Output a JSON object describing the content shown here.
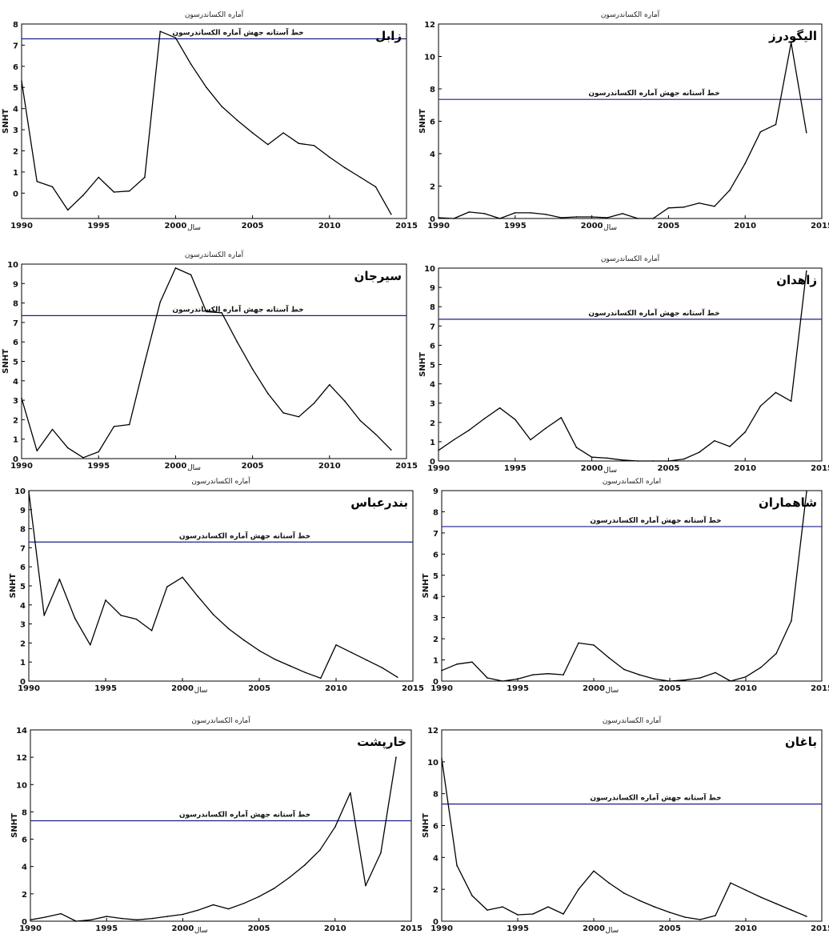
{
  "chart_data": [
    {
      "type": "line",
      "title": "آماره الکساندرسون",
      "station": "زابل",
      "xlabel": "سال",
      "ylabel": "SNHT",
      "xlim": [
        1990,
        2015
      ],
      "ylim": [
        -1.2,
        8
      ],
      "xticks": [
        1990,
        1995,
        2000,
        2005,
        2010,
        2015
      ],
      "yticks": [
        0,
        1,
        2,
        3,
        4,
        5,
        6,
        7,
        8
      ],
      "threshold": 7.3,
      "threshold_label": "خط آستانه جهش آماره الکساندرسون",
      "x": [
        1990,
        1991,
        1992,
        1993,
        1994,
        1995,
        1996,
        1997,
        1998,
        1999,
        2000,
        2001,
        2002,
        2003,
        2004,
        2005,
        2006,
        2007,
        2008,
        2009,
        2010,
        2011,
        2012,
        2013,
        2014
      ],
      "y": [
        5.3,
        0.55,
        0.3,
        -0.8,
        -0.1,
        0.75,
        0.05,
        0.1,
        0.75,
        7.65,
        7.35,
        6.1,
        5.0,
        4.1,
        3.45,
        2.85,
        2.3,
        2.85,
        2.35,
        2.25,
        1.7,
        1.2,
        0.75,
        0.3,
        -1.0
      ]
    },
    {
      "type": "line",
      "title": "آماره الکساندرسون",
      "station": "الیگودرز",
      "xlabel": "سال",
      "ylabel": "SNHT",
      "xlim": [
        1990,
        2015
      ],
      "ylim": [
        0,
        12
      ],
      "xticks": [
        1990,
        1995,
        2000,
        2005,
        2010,
        2015
      ],
      "yticks": [
        0,
        2,
        4,
        6,
        8,
        10,
        12
      ],
      "threshold": 7.35,
      "threshold_label": "خط آستانه جهش آماره الکساندرسون",
      "x": [
        1990,
        1991,
        1992,
        1993,
        1994,
        1995,
        1996,
        1997,
        1998,
        1999,
        2000,
        2001,
        2002,
        2003,
        2004,
        2005,
        2006,
        2007,
        2008,
        2009,
        2010,
        2011,
        2012,
        2013,
        2014
      ],
      "y": [
        0.05,
        0.0,
        0.4,
        0.3,
        0.0,
        0.35,
        0.35,
        0.25,
        0.05,
        0.1,
        0.1,
        0.05,
        0.3,
        0.0,
        0.0,
        0.65,
        0.7,
        0.95,
        0.75,
        1.75,
        3.4,
        5.35,
        5.8,
        10.85,
        5.3
      ]
    },
    {
      "type": "line",
      "title": "آماره الکساندرسون",
      "station": "سیرجان",
      "xlabel": "سال",
      "ylabel": "SNHT",
      "xlim": [
        1990,
        2015
      ],
      "ylim": [
        0,
        10
      ],
      "xticks": [
        1990,
        1995,
        2000,
        2005,
        2010,
        2015
      ],
      "yticks": [
        0,
        1,
        2,
        3,
        4,
        5,
        6,
        7,
        8,
        9,
        10
      ],
      "threshold": 7.35,
      "threshold_label": "خط آستانه جهش آماره الکساندرسون",
      "x": [
        1990,
        1991,
        1992,
        1993,
        1994,
        1995,
        1996,
        1997,
        1998,
        1999,
        2000,
        2001,
        2002,
        2003,
        2004,
        2005,
        2006,
        2007,
        2008,
        2009,
        2010,
        2011,
        2012,
        2013,
        2014
      ],
      "y": [
        3.1,
        0.4,
        1.5,
        0.55,
        0.05,
        0.35,
        1.65,
        1.75,
        4.95,
        8.05,
        9.8,
        9.45,
        7.55,
        7.5,
        6.0,
        4.6,
        3.35,
        2.35,
        2.15,
        2.85,
        3.8,
        2.95,
        1.95,
        1.25,
        0.45
      ]
    },
    {
      "type": "line",
      "title": "آماره الکساندرسون",
      "station": "زاهدان",
      "xlabel": "سال",
      "ylabel": "SNHT",
      "xlim": [
        1990,
        2015
      ],
      "ylim": [
        0,
        10
      ],
      "xticks": [
        1990,
        1995,
        2000,
        2005,
        2010,
        2015
      ],
      "yticks": [
        0,
        1,
        2,
        3,
        4,
        5,
        6,
        7,
        8,
        9,
        10
      ],
      "threshold": 7.35,
      "threshold_label": "خط آستانه جهش آماره الکساندرسون",
      "x": [
        1990,
        1991,
        1992,
        1993,
        1994,
        1995,
        1996,
        1997,
        1998,
        1999,
        2000,
        2001,
        2002,
        2003,
        2004,
        2005,
        2006,
        2007,
        2008,
        2009,
        2010,
        2011,
        2012,
        2013,
        2014
      ],
      "y": [
        0.55,
        1.1,
        1.6,
        2.2,
        2.75,
        2.15,
        1.1,
        1.7,
        2.25,
        0.7,
        0.2,
        0.15,
        0.05,
        0.0,
        0.0,
        0.0,
        0.1,
        0.45,
        1.05,
        0.75,
        1.5,
        2.85,
        3.55,
        3.1,
        9.85
      ]
    },
    {
      "type": "line",
      "title": "آماره الکساندرسون",
      "station": "بندرعباس",
      "xlabel": "سال",
      "ylabel": "SNHT",
      "xlim": [
        1990,
        2015
      ],
      "ylim": [
        0,
        10
      ],
      "xticks": [
        1990,
        1995,
        2000,
        2005,
        2010,
        2015
      ],
      "yticks": [
        0,
        1,
        2,
        3,
        4,
        5,
        6,
        7,
        8,
        9,
        10
      ],
      "threshold": 7.3,
      "threshold_label": "خط آستانه جهش آماره الکساندرسون",
      "x": [
        1990,
        1991,
        1992,
        1993,
        1994,
        1995,
        1996,
        1997,
        1998,
        1999,
        2000,
        2001,
        2002,
        2003,
        2004,
        2005,
        2006,
        2007,
        2008,
        2009,
        2010,
        2011,
        2012,
        2013,
        2014
      ],
      "y": [
        9.95,
        3.45,
        5.35,
        3.3,
        1.9,
        4.25,
        3.45,
        3.25,
        2.65,
        4.95,
        5.45,
        4.45,
        3.5,
        2.75,
        2.15,
        1.6,
        1.15,
        0.8,
        0.45,
        0.15,
        1.9,
        1.5,
        1.1,
        0.7,
        0.2
      ]
    },
    {
      "type": "line",
      "title": "اماره الکساندرسون",
      "station": "شاهماران",
      "xlabel": "سال",
      "ylabel": "SNHT",
      "xlim": [
        1990,
        2015
      ],
      "ylim": [
        0,
        9
      ],
      "xticks": [
        1990,
        1995,
        2000,
        2005,
        2010,
        2015
      ],
      "yticks": [
        0,
        1,
        2,
        3,
        4,
        5,
        6,
        7,
        8,
        9
      ],
      "threshold": 7.3,
      "threshold_label": "خط آستانه جهش آماره الکساندرسون",
      "x": [
        1990,
        1991,
        1992,
        1993,
        1994,
        1995,
        1996,
        1997,
        1998,
        1999,
        2000,
        2001,
        2002,
        2003,
        2004,
        2005,
        2006,
        2007,
        2008,
        2009,
        2010,
        2011,
        2012,
        2013,
        2014
      ],
      "y": [
        0.5,
        0.8,
        0.9,
        0.15,
        0.0,
        0.1,
        0.3,
        0.35,
        0.3,
        1.8,
        1.7,
        1.1,
        0.55,
        0.3,
        0.1,
        0.0,
        0.05,
        0.15,
        0.4,
        0.0,
        0.2,
        0.65,
        1.3,
        2.85,
        8.95
      ]
    },
    {
      "type": "line",
      "title": "آماره الکساندرسون",
      "station": "خارپشت",
      "xlabel": "سال",
      "ylabel": "SNHT",
      "xlim": [
        1990,
        2015
      ],
      "ylim": [
        0,
        14
      ],
      "xticks": [
        1990,
        1995,
        2000,
        2005,
        2010,
        2015
      ],
      "yticks": [
        0,
        2,
        4,
        6,
        8,
        10,
        12,
        14
      ],
      "threshold": 7.35,
      "threshold_label": "خط آستانه جهش آماره الکساندرسون",
      "x": [
        1990,
        1991,
        1992,
        1993,
        1994,
        1995,
        1996,
        1997,
        1998,
        1999,
        2000,
        2001,
        2002,
        2003,
        2004,
        2005,
        2006,
        2007,
        2008,
        2009,
        2010,
        2011,
        2012,
        2013,
        2014
      ],
      "y": [
        0.1,
        0.3,
        0.55,
        0.0,
        0.1,
        0.35,
        0.2,
        0.1,
        0.2,
        0.35,
        0.5,
        0.8,
        1.2,
        0.9,
        1.3,
        1.8,
        2.4,
        3.2,
        4.1,
        5.2,
        6.9,
        9.4,
        2.6,
        5.0,
        12.0
      ]
    },
    {
      "type": "line",
      "title": "آماره الکساندرسون",
      "station": "باغان",
      "xlabel": "سال",
      "ylabel": "SNHT",
      "xlim": [
        1990,
        2015
      ],
      "ylim": [
        0,
        12
      ],
      "xticks": [
        1990,
        1995,
        2000,
        2005,
        2010,
        2015
      ],
      "yticks": [
        0,
        2,
        4,
        6,
        8,
        10,
        12
      ],
      "threshold": 7.35,
      "threshold_label": "خط آستانه جهش آماره الکساندرسون",
      "x": [
        1990,
        1991,
        1992,
        1993,
        1994,
        1995,
        1996,
        1997,
        1998,
        1999,
        2000,
        2001,
        2002,
        2003,
        2004,
        2005,
        2006,
        2007,
        2008,
        2009,
        2010,
        2011,
        2012,
        2013,
        2014
      ],
      "y": [
        10.2,
        3.5,
        1.6,
        0.7,
        0.9,
        0.4,
        0.45,
        0.9,
        0.45,
        2.0,
        3.15,
        2.4,
        1.75,
        1.3,
        0.9,
        0.55,
        0.25,
        0.1,
        0.35,
        2.4,
        1.95,
        1.5,
        1.1,
        0.7,
        0.3
      ]
    }
  ]
}
